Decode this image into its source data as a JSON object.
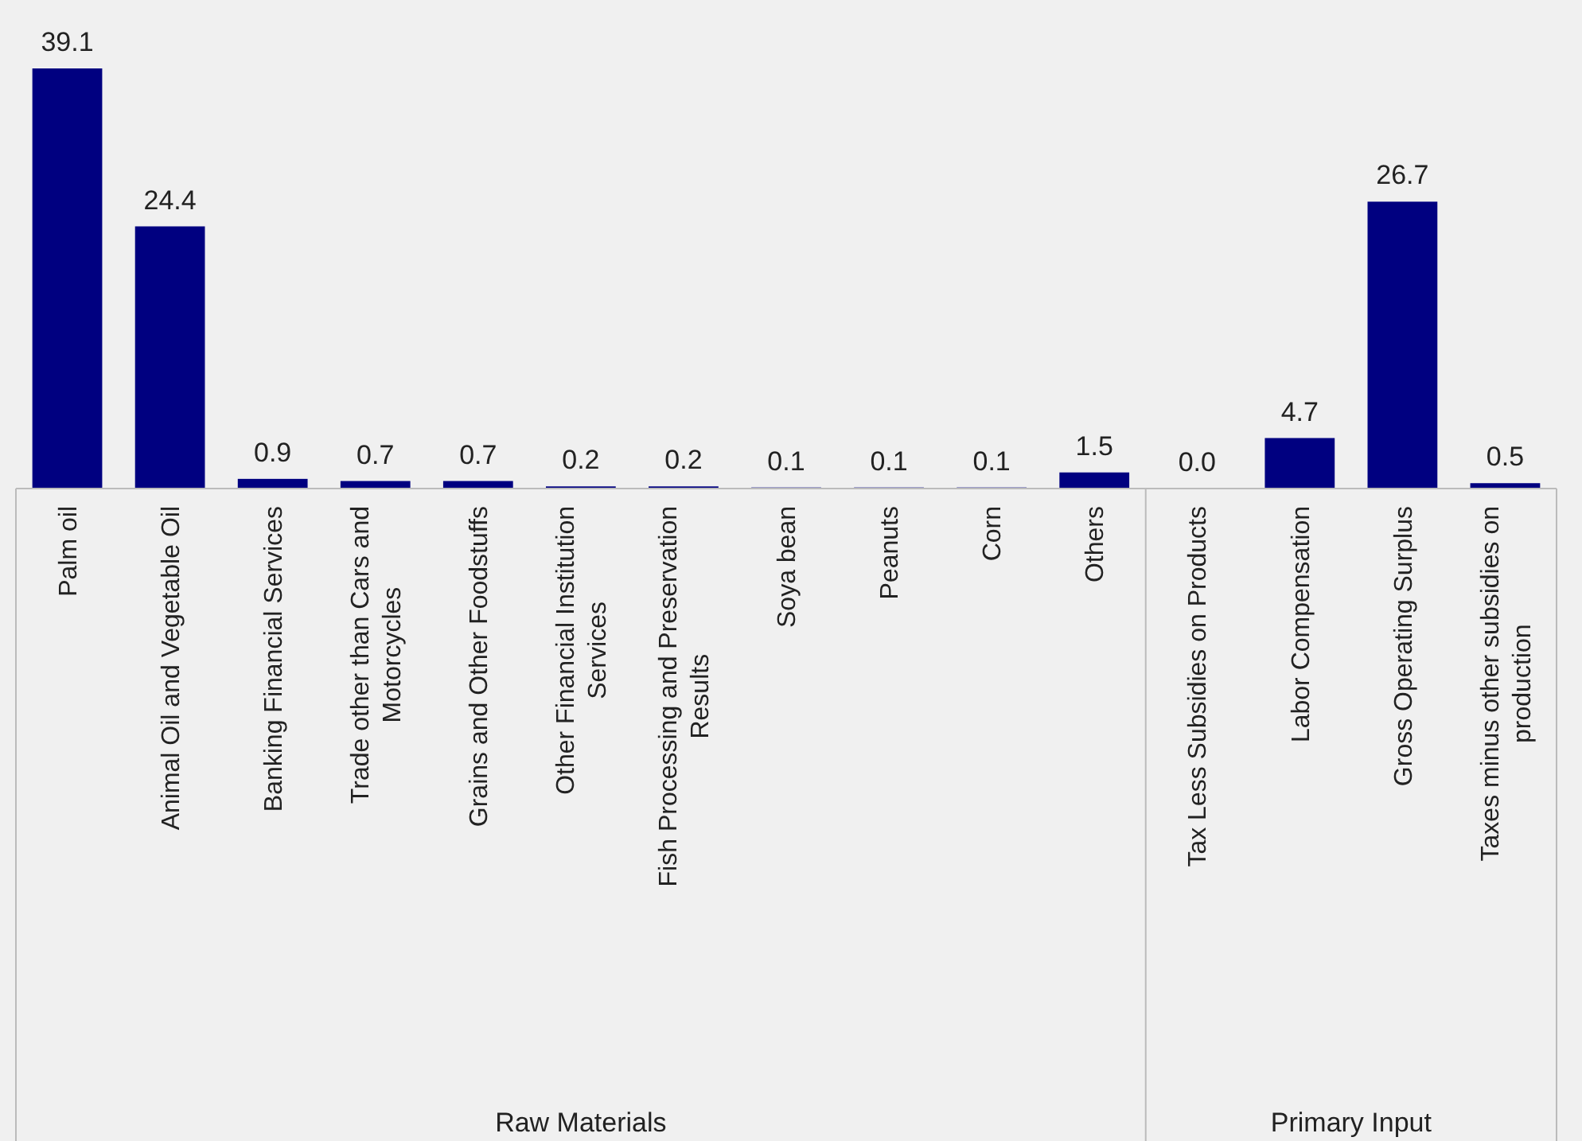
{
  "chart_data": {
    "type": "bar",
    "categories": [
      "Palm oil",
      "Animal Oil and Vegetable Oil",
      "Banking Financial Services",
      "Trade other than Cars and Motorcycles",
      "Grains and Other Foodstuffs",
      "Other Financial Institution Services",
      "Fish Processing and Preservation Results",
      "Soya bean",
      "Peanuts",
      "Corn",
      "Others",
      "Tax Less Subsidies on Products",
      "Labor Compensation",
      "Gross Operating Surplus",
      "Taxes minus other subsidies on production"
    ],
    "values": [
      39.1,
      24.4,
      0.9,
      0.7,
      0.7,
      0.2,
      0.2,
      0.1,
      0.1,
      0.1,
      1.5,
      0.0,
      4.7,
      26.7,
      0.5
    ],
    "color": "#000080",
    "value_labels": [
      "39.1",
      "24.4",
      "0.9",
      "0.7",
      "0.7",
      "0.2",
      "0.2",
      "0.1",
      "0.1",
      "0.1",
      "1.5",
      "0.0",
      "4.7",
      "26.7",
      "0.5"
    ],
    "annotations": [
      "Raw Materials",
      "Primary Input"
    ]
  }
}
